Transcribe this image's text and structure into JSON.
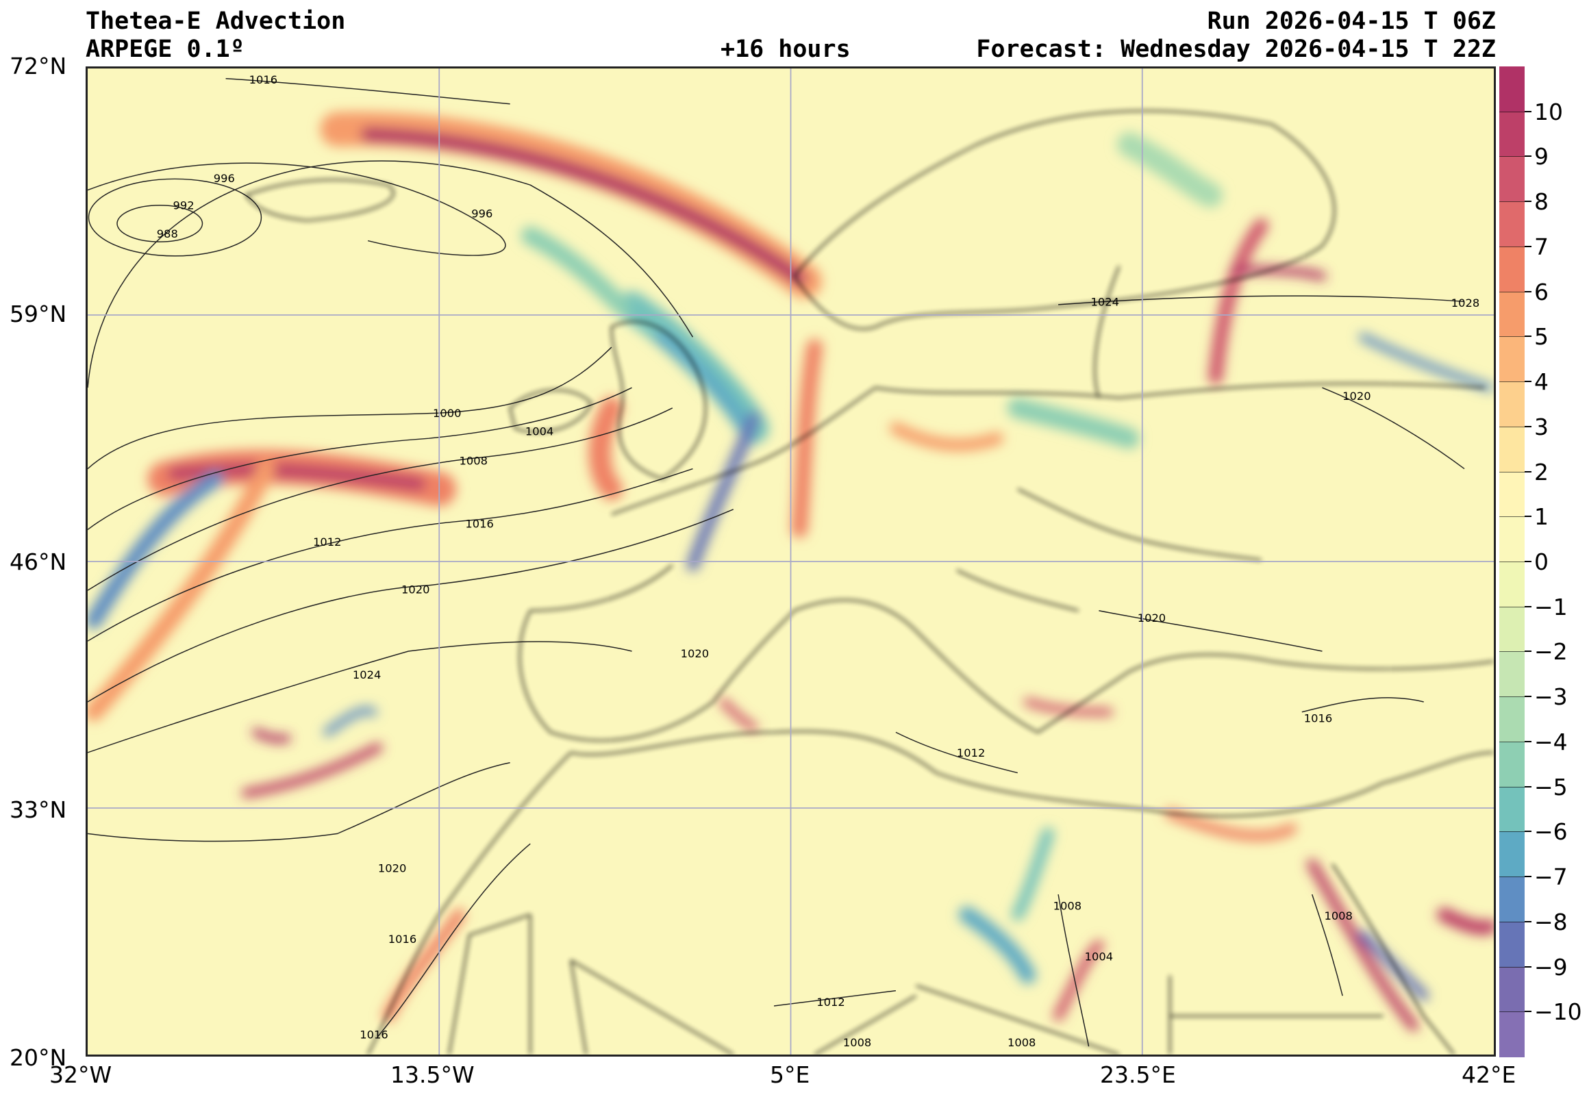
{
  "header": {
    "title": "Thetea-E Advection",
    "model": "ARPEGE 0.1º",
    "run": "Run 2026-04-15 T 06Z",
    "lead": "+16 hours",
    "forecast": "Forecast: Wednesday 2026-04-15 T 22Z"
  },
  "axes": {
    "lat_labels": [
      "72°N",
      "59°N",
      "46°N",
      "33°N",
      "20°N"
    ],
    "lon_labels": [
      "32°W",
      "13.5°W",
      "5°E",
      "23.5°E",
      "42°E"
    ],
    "lat_range": [
      20,
      72
    ],
    "lon_range": [
      -32,
      42
    ]
  },
  "colorbar": {
    "ticks": [
      "10",
      "9",
      "8",
      "7",
      "6",
      "5",
      "4",
      "3",
      "2",
      "1",
      "0",
      "−1",
      "−2",
      "−3",
      "−4",
      "−5",
      "−6",
      "−7",
      "−8",
      "−9",
      "−10"
    ],
    "colors": [
      "#b03266",
      "#bd4068",
      "#cf566d",
      "#e06a6b",
      "#ef8265",
      "#f69c6b",
      "#fbb67a",
      "#fdd08d",
      "#fee6a0",
      "#fff5b7",
      "#fbf8bb",
      "#f0f7b5",
      "#ddf0b2",
      "#c6e6b3",
      "#abdbb1",
      "#8ecfb3",
      "#74c2bb",
      "#5eaac4",
      "#5f8ec3",
      "#6675b7",
      "#7a6db0",
      "#8570b4"
    ]
  },
  "contour_labels": [
    "1016",
    "996",
    "992",
    "988",
    "996",
    "1000",
    "1004",
    "1008",
    "1012",
    "1016",
    "1020",
    "1024",
    "1020",
    "1024",
    "1028",
    "1020",
    "1020",
    "1016",
    "1012",
    "1016",
    "1020",
    "1016",
    "1012",
    "1008",
    "1004",
    "1008",
    "1008",
    "1008"
  ]
}
